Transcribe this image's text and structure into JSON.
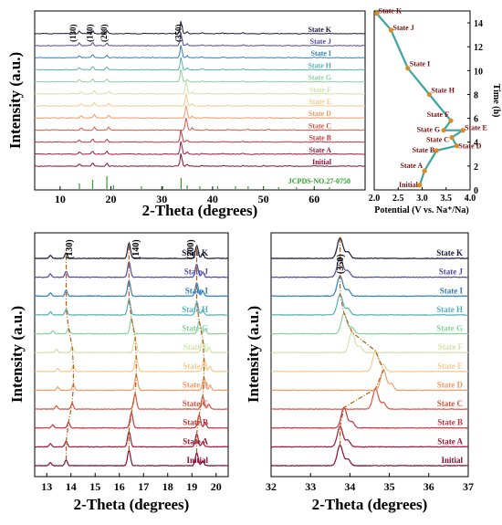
{
  "states": [
    "Initial",
    "State A",
    "State B",
    "State C",
    "State D",
    "State E",
    "State F",
    "State G",
    "State H",
    "State I",
    "State J",
    "State K"
  ],
  "state_colors": [
    "#8b0a2e",
    "#9b1b36",
    "#c8323c",
    "#e0543f",
    "#f19a63",
    "#f7c98c",
    "#cfe3a6",
    "#8ccf9f",
    "#55b0b5",
    "#2f7fbf",
    "#4f4aa3",
    "#1a1a3c"
  ],
  "reference_label": "JCPDS-NO.27-0750",
  "reference_color": "#2aa02a",
  "chart_data": [
    {
      "type": "line",
      "panel": "top-left",
      "title": "",
      "xlabel": "2-Theta (degrees)",
      "ylabel": "Intensity (a.u.)",
      "xlim": [
        5,
        70
      ],
      "xticks": [
        10,
        20,
        30,
        40,
        50,
        60
      ],
      "peak_labels": [
        "(130)",
        "(140)",
        "(200)",
        "(350)"
      ],
      "peak_positions": [
        13.8,
        16.4,
        19.2,
        33.8
      ],
      "series": [
        "Initial",
        "State A",
        "State B",
        "State C",
        "State D",
        "State E",
        "State F",
        "State G",
        "State H",
        "State I",
        "State J",
        "State K"
      ]
    },
    {
      "type": "scatter",
      "panel": "top-right",
      "title": "",
      "xlabel": "Potential (V vs. Na⁺/Na)",
      "ylabel": "Time (h)",
      "xlim": [
        2.0,
        4.0
      ],
      "ylim": [
        0,
        15
      ],
      "xticks": [
        "2.0",
        "2.5",
        "3.0",
        "3.5",
        "4.0"
      ],
      "yticks": [
        0,
        2,
        4,
        6,
        8,
        10,
        12,
        14
      ],
      "points": [
        {
          "label": "Initial",
          "x": 2.95,
          "y": 0.4
        },
        {
          "label": "State A",
          "x": 3.05,
          "y": 1.6
        },
        {
          "label": "State B",
          "x": 3.3,
          "y": 3.3
        },
        {
          "label": "State C",
          "x": 3.62,
          "y": 4.4
        },
        {
          "label": "State D",
          "x": 3.72,
          "y": 3.7
        },
        {
          "label": "State E",
          "x": 3.85,
          "y": 5.0
        },
        {
          "label": "State F",
          "x": 3.6,
          "y": 5.8
        },
        {
          "label": "State G",
          "x": 3.45,
          "y": 5.0
        },
        {
          "label": "State H",
          "x": 3.15,
          "y": 8.0
        },
        {
          "label": "State I",
          "x": 2.7,
          "y": 10.2
        },
        {
          "label": "State J",
          "x": 2.35,
          "y": 13.4
        },
        {
          "label": "State K",
          "x": 2.05,
          "y": 14.8
        }
      ]
    },
    {
      "type": "line",
      "panel": "bottom-left",
      "title": "",
      "xlabel": "2-Theta (degrees)",
      "ylabel": "Intensity (a.u.)",
      "xlim": [
        12.5,
        20.5
      ],
      "xticks": [
        13,
        14,
        15,
        16,
        17,
        18,
        19,
        20
      ],
      "peak_labels": [
        "(130)",
        "(140)",
        "(200)"
      ],
      "peak_positions": [
        13.8,
        16.4,
        19.2
      ],
      "series": [
        "Initial",
        "State A",
        "State B",
        "State C",
        "State D",
        "State E",
        "State F",
        "State G",
        "State H",
        "State I",
        "State J",
        "State K"
      ]
    },
    {
      "type": "line",
      "panel": "bottom-right",
      "title": "",
      "xlabel": "2-Theta (degrees)",
      "ylabel": "Intensity (a.u.)",
      "xlim": [
        32,
        37
      ],
      "xticks": [
        32,
        33,
        34,
        35,
        36,
        37
      ],
      "peak_labels": [
        "(350)"
      ],
      "peak_positions": [
        33.8
      ],
      "series": [
        "Initial",
        "State A",
        "State B",
        "State C",
        "State D",
        "State E",
        "State F",
        "State G",
        "State H",
        "State I",
        "State J",
        "State K"
      ]
    }
  ]
}
